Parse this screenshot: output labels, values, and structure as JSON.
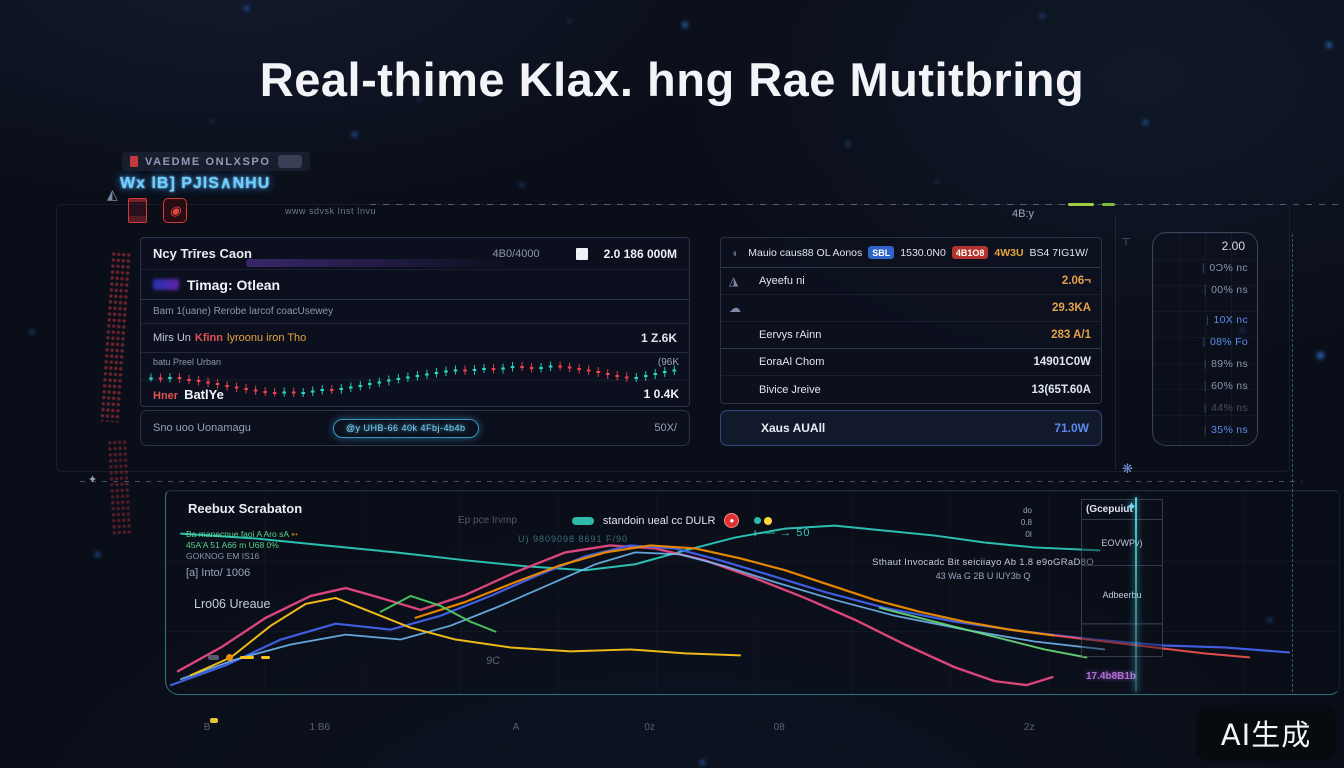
{
  "page": {
    "title": "Real-thime Klax. hng Rae Mutitbring",
    "watermark": "AI生成"
  },
  "topbar": {
    "badge_label": "VAEDME ONLXSPO",
    "glow_text": "Wx lB] PJlS∧NHU",
    "small_text": "www sdvsk Inst Invu",
    "right_value": "4B:y"
  },
  "left_panel": {
    "header": {
      "title": "Ncy Trīres Caon",
      "range": "4B0/4000",
      "stat": "2.0 186 000M"
    },
    "subtitle": "Timag: Otlean",
    "meta": "Bam 1(uane) Rerobe larcof coacUsewey",
    "alert": {
      "p1": "Mirs Un",
      "p2": "Kfinn",
      "p3": "lyroonu iron Tho",
      "value": "1 Z.6K"
    },
    "chart": {
      "label": "batu Preel Urban",
      "value": "(96K",
      "footer_red": "Hner",
      "footer_bold": "BatlYe",
      "footer_value": "1 0.4K"
    },
    "footer": {
      "label": "Sno uoo Uonamagu",
      "pill": "@y UHB-66 40k 4Fbj-4b4b",
      "value": "50X/"
    }
  },
  "right_panel": {
    "header": {
      "title": "Mauio caus88 OL Aonos",
      "badge1": "SBL",
      "v1": "1530.0N0",
      "badge2": "4B1O8",
      "accent": "4W3U",
      "rest": "BS4 7IG1W/"
    },
    "rows": [
      {
        "icon": "◮",
        "label": "Ayeefu ni",
        "value": "2.06¬",
        "tone": "orange"
      },
      {
        "icon": "☁",
        "label": "",
        "value": "29.3KA",
        "tone": "orange"
      },
      {
        "icon": "",
        "label": "Eervys rAinn",
        "value": "283 A/1",
        "tone": "orange"
      },
      {
        "icon": "",
        "label": "EoraAl Chom",
        "value": "14901C0W",
        "tone": "white"
      },
      {
        "icon": "",
        "label": "Bivice Jreive",
        "value": "13(65T.60A",
        "tone": "white"
      }
    ],
    "highlight_row": {
      "label": "Xaus AUAll",
      "value": "71.0W",
      "tone": "blue"
    }
  },
  "side_panel": {
    "top_value": "2.00",
    "readouts": [
      {
        "text": "0Ɔ% nc",
        "tone": "grey"
      },
      {
        "text": "00% ns",
        "tone": "grey"
      },
      {
        "text": "10X nc",
        "tone": "blue"
      },
      {
        "text": "08% Fo",
        "tone": "blue"
      },
      {
        "text": "89% ns",
        "tone": "grey"
      },
      {
        "text": "60% ns",
        "tone": "grey"
      },
      {
        "text": "44% ns",
        "tone": "dim"
      },
      {
        "text": "35% ns",
        "tone": "blue"
      }
    ]
  },
  "bottom_chart": {
    "title": "Reebux Scrabaton",
    "legend": {
      "faint": "Ep pce  Irvmp",
      "pill_label": "standoin ueal cc DULR",
      "sub": "U) 9809098 8691 F/90"
    },
    "notes": {
      "g1": "Ba manecnue faoi A Aro sA",
      "arrow": "➳",
      "g2": "45A'A 51 A66 m U68 0%",
      "g3": "GOKNOG EM IS16"
    },
    "label_info": "[a] Into/ 1006",
    "label_series": "Lro06 Ureaue",
    "annotation_arrow": "⟝— → 50",
    "annotation_center1": "Sthaut Invocadc Bit seiciiayo Ab 1.8 e9oGRaD8O",
    "annotation_center2": "43 Wa G    2B U IUY3b    Q",
    "small_label": "9C",
    "stack": {
      "l1": "do",
      "l2": "0.8",
      "l3": "0I"
    },
    "sidebar": {
      "header": "(Gcepuiut",
      "box1": "EOVWPv)",
      "box2": "Adbeerbu",
      "footer": "17.4b8B1b"
    }
  },
  "colors": {
    "accent_teal": "#2dc9bc",
    "accent_orange": "#e3a04a",
    "accent_blue": "#5b8dee",
    "candle_up": "#2ad8c0",
    "candle_down": "#f1424e",
    "glow_blue": "#6fd0ff",
    "purple": "#b06fd8"
  },
  "chart_data": [
    {
      "type": "candlestick",
      "title": "price strip (left panel)",
      "values": [
        55,
        53,
        56,
        52,
        50,
        47,
        44,
        40,
        37,
        34,
        31,
        28,
        26,
        25,
        27,
        24,
        26,
        29,
        32,
        30,
        34,
        37,
        40,
        44,
        47,
        51,
        54,
        57,
        60,
        63,
        66,
        69,
        71,
        68,
        72,
        74,
        71,
        75,
        78,
        76,
        73,
        76,
        79,
        77,
        74,
        71,
        68,
        64,
        60,
        57,
        54,
        56,
        60,
        64,
        68,
        71
      ],
      "up_color": "#2ad8c0",
      "down_color": "#f1424e"
    },
    {
      "type": "line",
      "title": "Reebux Scrabaton",
      "xlim": [
        0,
        1175
      ],
      "ylim": [
        0,
        205
      ],
      "grid": true,
      "legend_position": "top-center",
      "x_labels": [
        "B",
        "1 B6",
        "A",
        "0z",
        "08",
        "2z"
      ],
      "x_pos": [
        0.033,
        0.123,
        0.296,
        0.408,
        0.518,
        0.731
      ],
      "series": [
        {
          "name": "teal-baseline",
          "color": "#2dc9bc",
          "width": 2,
          "opacity": 0.95,
          "points": [
            [
              15,
              43
            ],
            [
              90,
              48
            ],
            [
              160,
              55
            ],
            [
              230,
              62
            ],
            [
              300,
              70
            ],
            [
              360,
              76
            ],
            [
              420,
              80
            ],
            [
              470,
              74
            ],
            [
              520,
              60
            ],
            [
              570,
              47
            ],
            [
              620,
              38
            ],
            [
              670,
              35
            ],
            [
              720,
              40
            ],
            [
              770,
              45
            ],
            [
              820,
              52
            ],
            [
              870,
              57
            ],
            [
              935,
              60
            ]
          ]
        },
        {
          "name": "magenta",
          "color": "#e64980",
          "width": 2.4,
          "opacity": 0.95,
          "points": [
            [
              12,
              182
            ],
            [
              55,
              158
            ],
            [
              100,
              128
            ],
            [
              145,
              106
            ],
            [
              180,
              98
            ],
            [
              215,
              108
            ],
            [
              255,
              120
            ],
            [
              300,
              105
            ],
            [
              350,
              82
            ],
            [
              400,
              62
            ],
            [
              445,
              55
            ],
            [
              490,
              58
            ],
            [
              540,
              70
            ],
            [
              590,
              88
            ],
            [
              640,
              108
            ],
            [
              690,
              130
            ],
            [
              740,
              155
            ],
            [
              790,
              178
            ],
            [
              830,
              192
            ],
            [
              862,
              196
            ],
            [
              888,
              188
            ]
          ]
        },
        {
          "name": "royal-blue",
          "color": "#4263eb",
          "width": 2.2,
          "opacity": 0.95,
          "points": [
            [
              5,
              196
            ],
            [
              60,
              176
            ],
            [
              115,
              150
            ],
            [
              170,
              134
            ],
            [
              225,
              140
            ],
            [
              275,
              126
            ],
            [
              325,
              106
            ],
            [
              375,
              84
            ],
            [
              420,
              66
            ],
            [
              465,
              55
            ],
            [
              510,
              58
            ],
            [
              555,
              70
            ],
            [
              605,
              85
            ],
            [
              660,
              102
            ],
            [
              720,
              118
            ],
            [
              790,
              132
            ],
            [
              860,
              142
            ],
            [
              930,
              150
            ],
            [
              1000,
              156
            ],
            [
              1060,
              158
            ],
            [
              1125,
              163
            ]
          ]
        },
        {
          "name": "light-blue",
          "color": "#74c0fc",
          "width": 1.8,
          "opacity": 0.85,
          "points": [
            [
              15,
              190
            ],
            [
              70,
              170
            ],
            [
              125,
              155
            ],
            [
              180,
              145
            ],
            [
              235,
              150
            ],
            [
              285,
              136
            ],
            [
              335,
              116
            ],
            [
              385,
              94
            ],
            [
              430,
              74
            ],
            [
              470,
              62
            ],
            [
              515,
              64
            ],
            [
              560,
              76
            ],
            [
              610,
              92
            ],
            [
              670,
              110
            ],
            [
              730,
              126
            ],
            [
              800,
              140
            ],
            [
              870,
              152
            ],
            [
              940,
              160
            ]
          ]
        },
        {
          "name": "orange",
          "color": "#f08c00",
          "width": 2.2,
          "opacity": 0.95,
          "points": [
            [
              250,
              128
            ],
            [
              300,
              112
            ],
            [
              350,
              92
            ],
            [
              395,
              75
            ],
            [
              440,
              62
            ],
            [
              485,
              55
            ],
            [
              530,
              58
            ],
            [
              575,
              68
            ],
            [
              620,
              80
            ],
            [
              665,
              95
            ],
            [
              710,
              110
            ],
            [
              755,
              122
            ],
            [
              800,
              132
            ],
            [
              845,
              140
            ],
            [
              890,
              146
            ]
          ]
        },
        {
          "name": "red-tail",
          "color": "#fa5252",
          "width": 2,
          "opacity": 0.9,
          "points": [
            [
              890,
              146
            ],
            [
              940,
              152
            ],
            [
              990,
              158
            ],
            [
              1040,
              164
            ],
            [
              1085,
              168
            ]
          ]
        },
        {
          "name": "yellow",
          "color": "#fcc419",
          "width": 2,
          "opacity": 0.95,
          "points": [
            [
              25,
              186
            ],
            [
              65,
              168
            ],
            [
              105,
              136
            ],
            [
              140,
              114
            ],
            [
              170,
              108
            ],
            [
              205,
              122
            ],
            [
              245,
              138
            ],
            [
              290,
              150
            ],
            [
              345,
              158
            ],
            [
              405,
              162
            ],
            [
              465,
              160
            ],
            [
              520,
              164
            ],
            [
              575,
              166
            ]
          ]
        },
        {
          "name": "green-burst",
          "color": "#51cf66",
          "width": 2,
          "opacity": 0.9,
          "points": [
            [
              215,
              122
            ],
            [
              245,
              106
            ],
            [
              275,
              116
            ],
            [
              305,
              132
            ],
            [
              330,
              142
            ]
          ]
        },
        {
          "name": "green-tail",
          "color": "#69db7c",
          "width": 2,
          "opacity": 0.9,
          "points": [
            [
              715,
              118
            ],
            [
              770,
              132
            ],
            [
              825,
              146
            ],
            [
              880,
              160
            ],
            [
              922,
              168
            ]
          ]
        }
      ]
    }
  ]
}
